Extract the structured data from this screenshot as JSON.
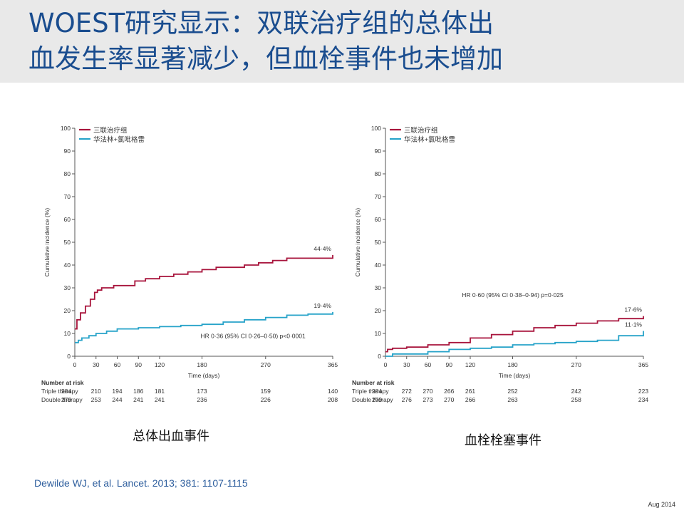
{
  "slide": {
    "title_line1": "WOEST研究显示：双联治疗组的总体出",
    "title_line2": "血发生率显著减少，但血栓事件也未增加",
    "citation": "Dewilde WJ, et al. Lancet. 2013; 381: 1107-1115",
    "date": "Aug 2014",
    "caption_left": "总体出血事件",
    "caption_right": "血栓栓塞事件"
  },
  "colors": {
    "title": "#1a4d8f",
    "triple": "#a8143c",
    "double": "#27a3c9",
    "header_bg": "#e9e9e9"
  },
  "chart_data": [
    {
      "type": "line",
      "legend_position": "top-left",
      "legend": [
        "三联治疗组",
        "华法林+氯吡格雷"
      ],
      "xlabel": "Time (days)",
      "ylabel": "Cumulative incidence (%)",
      "xlim": [
        0,
        365
      ],
      "ylim": [
        0,
        100
      ],
      "xticks": [
        0,
        30,
        60,
        90,
        120,
        180,
        270,
        365
      ],
      "yticks": [
        0,
        10,
        20,
        30,
        40,
        50,
        60,
        70,
        80,
        90,
        100
      ],
      "annotation": "HR 0·36 (95% CI 0·26–0·50) p<0·0001",
      "series": [
        {
          "name": "三联治疗组",
          "end_label": "44·4%",
          "x": [
            0,
            3,
            8,
            15,
            22,
            28,
            32,
            38,
            45,
            55,
            70,
            85,
            100,
            120,
            140,
            160,
            180,
            200,
            220,
            240,
            260,
            280,
            300,
            330,
            365
          ],
          "y": [
            12,
            16,
            19,
            22,
            25,
            28,
            29,
            30,
            30,
            31,
            31,
            33,
            34,
            35,
            36,
            37,
            38,
            39,
            39,
            40,
            41,
            42,
            43,
            43,
            44.4
          ]
        },
        {
          "name": "华法林+氯吡格雷",
          "end_label": "19·4%",
          "x": [
            0,
            5,
            10,
            20,
            30,
            45,
            60,
            90,
            120,
            150,
            180,
            210,
            240,
            270,
            300,
            330,
            365
          ],
          "y": [
            6,
            7,
            8,
            9,
            10,
            11,
            12,
            12.5,
            13,
            13.5,
            14,
            15,
            16,
            17,
            18,
            18.5,
            19.4
          ]
        }
      ],
      "risk_table": {
        "heading": "Number at risk",
        "rows": [
          {
            "label": "Triple therapy",
            "values": [
              284,
              210,
              194,
              186,
              181,
              173,
              159,
              140
            ]
          },
          {
            "label": "Double therapy",
            "values": [
              279,
              253,
              244,
              241,
              241,
              236,
              226,
              208
            ]
          }
        ]
      }
    },
    {
      "type": "line",
      "legend_position": "top-left",
      "legend": [
        "三联治疗组",
        "华法林+氯吡格雷"
      ],
      "xlabel": "Time (days)",
      "ylabel": "Cumulative incidence (%)",
      "xlim": [
        0,
        365
      ],
      "ylim": [
        0,
        100
      ],
      "xticks": [
        0,
        30,
        60,
        90,
        120,
        180,
        270,
        365
      ],
      "yticks": [
        0,
        10,
        20,
        30,
        40,
        50,
        60,
        70,
        80,
        90,
        100
      ],
      "annotation": "HR 0·60 (95% CI 0·38–0·94) p=0·025",
      "series": [
        {
          "name": "三联治疗组",
          "end_label": "17·6%",
          "x": [
            0,
            3,
            10,
            30,
            60,
            90,
            120,
            150,
            180,
            210,
            240,
            270,
            300,
            330,
            365
          ],
          "y": [
            2,
            3,
            3.5,
            4,
            5,
            6,
            8,
            9.5,
            11,
            12.5,
            13.5,
            14.5,
            15.5,
            16.5,
            17.6
          ]
        },
        {
          "name": "华法林+氯吡格雷",
          "end_label": "11·1%",
          "x": [
            0,
            10,
            30,
            60,
            90,
            120,
            150,
            180,
            210,
            240,
            270,
            300,
            330,
            365
          ],
          "y": [
            0,
            1,
            1,
            2,
            3,
            3.5,
            4,
            5,
            5.5,
            6,
            6.5,
            7,
            9,
            11.1
          ]
        }
      ],
      "risk_table": {
        "heading": "Number at risk",
        "rows": [
          {
            "label": "Triple therapy",
            "values": [
              284,
              272,
              270,
              266,
              261,
              252,
              242,
              223
            ]
          },
          {
            "label": "Double therapy",
            "values": [
              279,
              276,
              273,
              270,
              266,
              263,
              258,
              234
            ]
          }
        ]
      }
    }
  ]
}
